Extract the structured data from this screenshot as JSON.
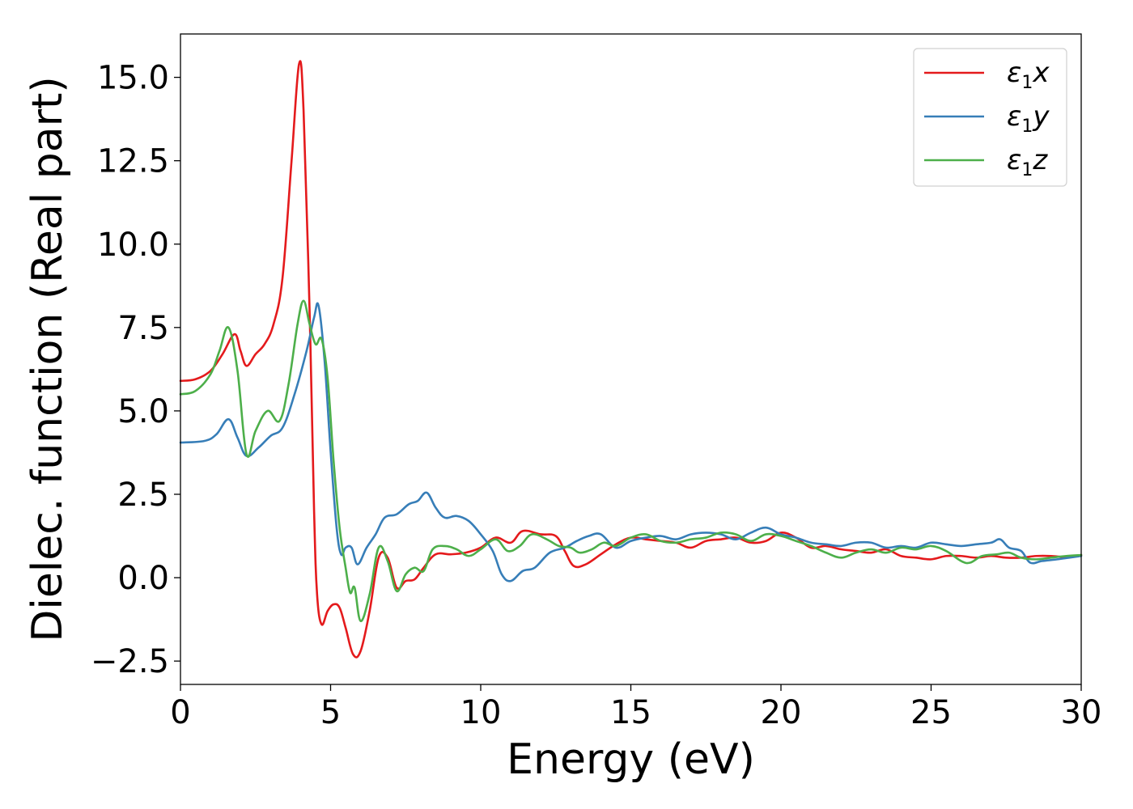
{
  "chart_data": {
    "type": "line",
    "xlabel": "Energy (eV)",
    "ylabel": "Dielec. function (Real part)",
    "xlim": [
      0,
      30
    ],
    "ylim": [
      -3.2,
      16.3
    ],
    "xticks": [
      0,
      5,
      10,
      15,
      20,
      25,
      30
    ],
    "xtick_labels": [
      "0",
      "5",
      "10",
      "15",
      "20",
      "25",
      "30"
    ],
    "yticks": [
      -2.5,
      0.0,
      2.5,
      5.0,
      7.5,
      10.0,
      12.5,
      15.0
    ],
    "ytick_labels": [
      "−2.5",
      "0.0",
      "2.5",
      "5.0",
      "7.5",
      "10.0",
      "12.5",
      "15.0"
    ],
    "grid": false,
    "legend_position": "top-right",
    "series": [
      {
        "name": "ε1x",
        "legend_main": "ε",
        "legend_sub": "1",
        "legend_suffix": "x",
        "color": "#e41a1c",
        "points": [
          [
            0,
            5.9
          ],
          [
            0.5,
            5.95
          ],
          [
            1.0,
            6.2
          ],
          [
            1.4,
            6.7
          ],
          [
            1.8,
            7.3
          ],
          [
            2.0,
            6.8
          ],
          [
            2.2,
            6.35
          ],
          [
            2.5,
            6.7
          ],
          [
            2.8,
            7.0
          ],
          [
            3.1,
            7.6
          ],
          [
            3.4,
            9.0
          ],
          [
            3.7,
            12.5
          ],
          [
            3.95,
            15.4
          ],
          [
            4.1,
            14.0
          ],
          [
            4.3,
            8.0
          ],
          [
            4.45,
            2.0
          ],
          [
            4.55,
            -0.5
          ],
          [
            4.7,
            -1.4
          ],
          [
            4.9,
            -1.0
          ],
          [
            5.1,
            -0.8
          ],
          [
            5.3,
            -0.9
          ],
          [
            5.5,
            -1.5
          ],
          [
            5.75,
            -2.3
          ],
          [
            6.0,
            -2.2
          ],
          [
            6.3,
            -1.0
          ],
          [
            6.6,
            0.6
          ],
          [
            6.9,
            0.6
          ],
          [
            7.2,
            -0.3
          ],
          [
            7.5,
            -0.1
          ],
          [
            7.8,
            -0.05
          ],
          [
            8.1,
            0.3
          ],
          [
            8.5,
            0.7
          ],
          [
            9.0,
            0.7
          ],
          [
            9.5,
            0.75
          ],
          [
            10.0,
            0.9
          ],
          [
            10.5,
            1.2
          ],
          [
            11.0,
            1.05
          ],
          [
            11.4,
            1.4
          ],
          [
            12.0,
            1.3
          ],
          [
            12.5,
            1.25
          ],
          [
            12.8,
            0.8
          ],
          [
            13.1,
            0.35
          ],
          [
            13.5,
            0.4
          ],
          [
            14.0,
            0.7
          ],
          [
            14.5,
            1.0
          ],
          [
            15.0,
            1.2
          ],
          [
            15.5,
            1.15
          ],
          [
            16.0,
            1.1
          ],
          [
            16.5,
            1.05
          ],
          [
            17.0,
            0.9
          ],
          [
            17.5,
            1.1
          ],
          [
            18.0,
            1.15
          ],
          [
            18.5,
            1.2
          ],
          [
            19.0,
            1.05
          ],
          [
            19.5,
            1.1
          ],
          [
            20.0,
            1.35
          ],
          [
            20.5,
            1.2
          ],
          [
            21.0,
            0.9
          ],
          [
            21.5,
            0.95
          ],
          [
            22.0,
            0.85
          ],
          [
            22.5,
            0.8
          ],
          [
            23.0,
            0.75
          ],
          [
            23.5,
            0.85
          ],
          [
            24.0,
            0.65
          ],
          [
            24.5,
            0.6
          ],
          [
            25.0,
            0.55
          ],
          [
            25.5,
            0.65
          ],
          [
            26.0,
            0.65
          ],
          [
            26.5,
            0.6
          ],
          [
            27.0,
            0.65
          ],
          [
            27.5,
            0.6
          ],
          [
            28.0,
            0.6
          ],
          [
            28.5,
            0.65
          ],
          [
            29.0,
            0.65
          ],
          [
            29.5,
            0.62
          ],
          [
            30.0,
            0.68
          ]
        ]
      },
      {
        "name": "ε1y",
        "legend_main": "ε",
        "legend_sub": "1",
        "legend_suffix": "y",
        "color": "#377eb8",
        "points": [
          [
            0,
            4.05
          ],
          [
            0.8,
            4.1
          ],
          [
            1.2,
            4.3
          ],
          [
            1.6,
            4.75
          ],
          [
            1.9,
            4.2
          ],
          [
            2.2,
            3.65
          ],
          [
            2.6,
            3.9
          ],
          [
            3.0,
            4.25
          ],
          [
            3.4,
            4.5
          ],
          [
            3.8,
            5.5
          ],
          [
            4.2,
            6.8
          ],
          [
            4.45,
            7.8
          ],
          [
            4.6,
            8.15
          ],
          [
            4.8,
            6.5
          ],
          [
            5.0,
            3.8
          ],
          [
            5.2,
            1.5
          ],
          [
            5.35,
            0.7
          ],
          [
            5.5,
            0.9
          ],
          [
            5.7,
            0.9
          ],
          [
            5.9,
            0.4
          ],
          [
            6.2,
            0.9
          ],
          [
            6.5,
            1.3
          ],
          [
            6.8,
            1.8
          ],
          [
            7.2,
            1.9
          ],
          [
            7.6,
            2.2
          ],
          [
            7.9,
            2.3
          ],
          [
            8.2,
            2.55
          ],
          [
            8.5,
            2.1
          ],
          [
            8.8,
            1.8
          ],
          [
            9.2,
            1.85
          ],
          [
            9.6,
            1.7
          ],
          [
            10.0,
            1.3
          ],
          [
            10.4,
            0.8
          ],
          [
            10.7,
            0.1
          ],
          [
            11.0,
            -0.1
          ],
          [
            11.4,
            0.2
          ],
          [
            11.8,
            0.3
          ],
          [
            12.3,
            0.75
          ],
          [
            12.8,
            0.9
          ],
          [
            13.2,
            1.1
          ],
          [
            13.6,
            1.25
          ],
          [
            14.0,
            1.3
          ],
          [
            14.5,
            0.9
          ],
          [
            15.0,
            1.1
          ],
          [
            15.5,
            1.2
          ],
          [
            16.0,
            1.25
          ],
          [
            16.5,
            1.15
          ],
          [
            17.0,
            1.3
          ],
          [
            17.5,
            1.35
          ],
          [
            18.0,
            1.3
          ],
          [
            18.5,
            1.15
          ],
          [
            19.0,
            1.35
          ],
          [
            19.5,
            1.5
          ],
          [
            20.0,
            1.3
          ],
          [
            20.5,
            1.2
          ],
          [
            21.0,
            1.05
          ],
          [
            21.5,
            1.0
          ],
          [
            22.0,
            0.95
          ],
          [
            22.5,
            1.05
          ],
          [
            23.0,
            1.05
          ],
          [
            23.5,
            0.9
          ],
          [
            24.0,
            0.95
          ],
          [
            24.5,
            0.9
          ],
          [
            25.0,
            1.05
          ],
          [
            25.5,
            1.0
          ],
          [
            26.0,
            0.95
          ],
          [
            26.5,
            1.0
          ],
          [
            27.0,
            1.05
          ],
          [
            27.3,
            1.15
          ],
          [
            27.6,
            0.9
          ],
          [
            28.0,
            0.8
          ],
          [
            28.3,
            0.45
          ],
          [
            28.7,
            0.5
          ],
          [
            29.2,
            0.55
          ],
          [
            29.6,
            0.6
          ],
          [
            30.0,
            0.65
          ]
        ]
      },
      {
        "name": "ε1z",
        "legend_main": "ε",
        "legend_sub": "1",
        "legend_suffix": "z",
        "color": "#4daf4a",
        "points": [
          [
            0,
            5.5
          ],
          [
            0.5,
            5.6
          ],
          [
            1.0,
            6.1
          ],
          [
            1.3,
            6.8
          ],
          [
            1.6,
            7.5
          ],
          [
            1.9,
            6.2
          ],
          [
            2.2,
            3.7
          ],
          [
            2.5,
            4.4
          ],
          [
            2.9,
            5.0
          ],
          [
            3.3,
            4.7
          ],
          [
            3.6,
            5.8
          ],
          [
            3.9,
            7.6
          ],
          [
            4.1,
            8.3
          ],
          [
            4.3,
            7.6
          ],
          [
            4.5,
            7.0
          ],
          [
            4.7,
            7.15
          ],
          [
            4.9,
            6.0
          ],
          [
            5.1,
            3.5
          ],
          [
            5.3,
            1.5
          ],
          [
            5.5,
            0.3
          ],
          [
            5.65,
            -0.45
          ],
          [
            5.8,
            -0.3
          ],
          [
            6.0,
            -1.3
          ],
          [
            6.3,
            -0.5
          ],
          [
            6.6,
            0.9
          ],
          [
            6.9,
            0.5
          ],
          [
            7.2,
            -0.4
          ],
          [
            7.5,
            0.1
          ],
          [
            7.8,
            0.3
          ],
          [
            8.1,
            0.2
          ],
          [
            8.4,
            0.85
          ],
          [
            8.8,
            0.95
          ],
          [
            9.2,
            0.85
          ],
          [
            9.6,
            0.65
          ],
          [
            10.0,
            0.85
          ],
          [
            10.5,
            1.15
          ],
          [
            10.9,
            0.8
          ],
          [
            11.3,
            0.95
          ],
          [
            11.7,
            1.3
          ],
          [
            12.2,
            1.15
          ],
          [
            12.6,
            0.95
          ],
          [
            13.0,
            0.9
          ],
          [
            13.3,
            0.75
          ],
          [
            13.7,
            0.85
          ],
          [
            14.1,
            1.05
          ],
          [
            14.5,
            0.95
          ],
          [
            15.0,
            1.2
          ],
          [
            15.5,
            1.3
          ],
          [
            16.0,
            1.1
          ],
          [
            16.5,
            1.05
          ],
          [
            17.0,
            1.15
          ],
          [
            17.5,
            1.2
          ],
          [
            18.0,
            1.35
          ],
          [
            18.5,
            1.3
          ],
          [
            19.0,
            1.1
          ],
          [
            19.5,
            1.3
          ],
          [
            20.0,
            1.25
          ],
          [
            20.5,
            1.1
          ],
          [
            21.0,
            0.95
          ],
          [
            21.5,
            0.75
          ],
          [
            22.0,
            0.6
          ],
          [
            22.5,
            0.75
          ],
          [
            23.0,
            0.85
          ],
          [
            23.5,
            0.75
          ],
          [
            24.0,
            0.9
          ],
          [
            24.5,
            0.85
          ],
          [
            25.0,
            0.95
          ],
          [
            25.5,
            0.8
          ],
          [
            26.0,
            0.5
          ],
          [
            26.3,
            0.45
          ],
          [
            26.7,
            0.65
          ],
          [
            27.2,
            0.7
          ],
          [
            27.6,
            0.75
          ],
          [
            28.0,
            0.6
          ],
          [
            28.5,
            0.55
          ],
          [
            29.0,
            0.6
          ],
          [
            29.5,
            0.65
          ],
          [
            30.0,
            0.68
          ]
        ]
      }
    ]
  }
}
